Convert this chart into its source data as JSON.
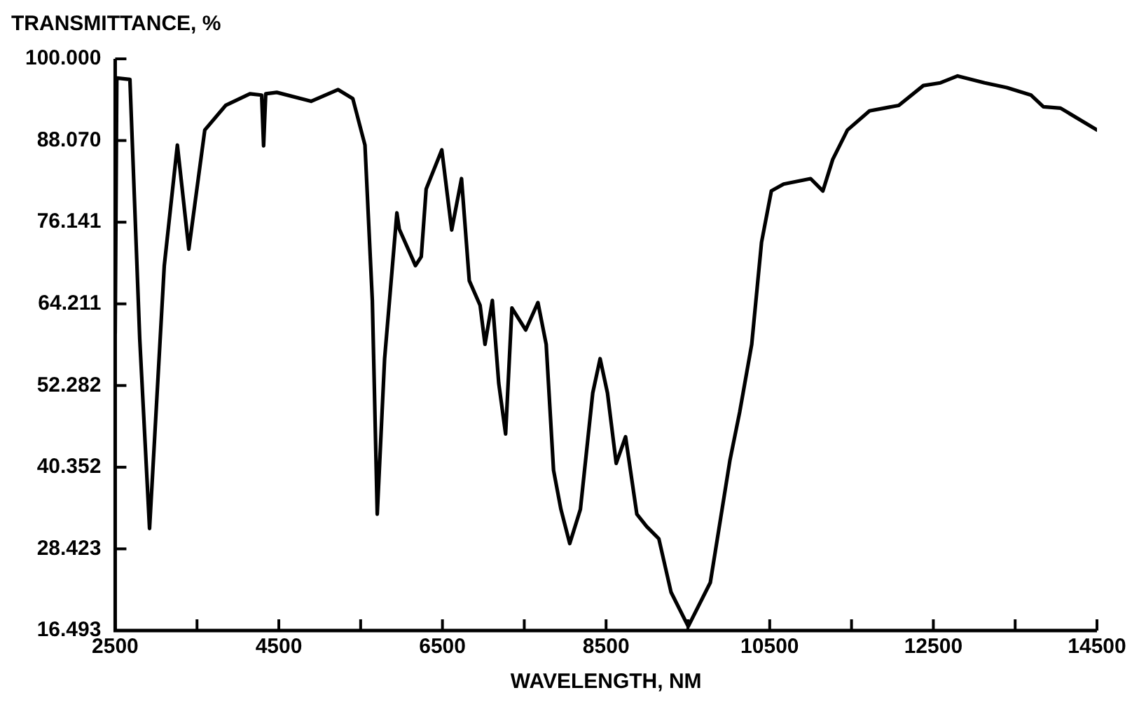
{
  "chart_data": {
    "type": "line",
    "xlabel": "WAVELENGTH, NM",
    "ylabel": "TRANSMITTANCE, %",
    "x": [
      2500,
      2520,
      2680,
      2800,
      2920,
      3100,
      3260,
      3400,
      3595,
      3850,
      4147,
      4290,
      4314,
      4340,
      4475,
      4894,
      5225,
      5404,
      5553,
      5643,
      5703,
      5793,
      5943,
      5973,
      6122,
      6170,
      6241,
      6301,
      6492,
      6613,
      6733,
      6828,
      6960,
      7020,
      7110,
      7188,
      7272,
      7349,
      7517,
      7667,
      7768,
      7858,
      7948,
      8056,
      8186,
      8337,
      8427,
      8517,
      8624,
      8738,
      8876,
      8995,
      9145,
      9294,
      9504,
      9774,
      10013,
      10133,
      10280,
      10400,
      10520,
      10670,
      11000,
      11150,
      11270,
      11450,
      11720,
      12077,
      12378,
      12587,
      12797,
      13127,
      13397,
      13695,
      13845,
      14055,
      14500
    ],
    "series": [
      {
        "color": "#000000",
        "values": [
          60,
          97.2,
          97,
          59.1,
          31.4,
          69.8,
          87.4,
          72.2,
          89.6,
          93.2,
          94.9,
          94.7,
          87.3,
          94.9,
          95.1,
          93.8,
          95.5,
          94.2,
          87.4,
          64.7,
          33.5,
          56.2,
          77.5,
          75.1,
          71.1,
          69.8,
          71.1,
          81,
          86.7,
          75,
          82.5,
          67.6,
          64,
          58.3,
          64.7,
          52.6,
          45.2,
          63.6,
          60.4,
          64.4,
          58.3,
          39.9,
          34.2,
          29.2,
          34.2,
          51.2,
          56.2,
          51.2,
          40.9,
          44.8,
          33.5,
          31.7,
          29.9,
          22.1,
          17.1,
          23.5,
          41.3,
          48.4,
          58.3,
          73.2,
          80.7,
          81.7,
          82.5,
          80.7,
          85.3,
          89.6,
          92.4,
          93.2,
          96.1,
          96.5,
          97.5,
          96.5,
          95.8,
          94.7,
          93,
          92.8,
          89.6
        ]
      }
    ],
    "xlim": [
      2500,
      14500
    ],
    "xticks": [
      2500,
      {
        "value": 3500,
        "label": null
      },
      4500,
      {
        "value": 5500,
        "label": null
      },
      6500,
      {
        "value": 7500,
        "label": null
      },
      8500,
      {
        "value": 9500,
        "label": null
      },
      10500,
      {
        "value": 11500,
        "label": null
      },
      12500,
      {
        "value": 13500,
        "label": null
      },
      14500
    ],
    "ylim": [
      16.493,
      100
    ],
    "yticks": [
      16.493,
      28.423,
      40.352,
      52.282,
      64.211,
      76.141,
      {
        "value": 88.07,
        "label": "88.070"
      },
      {
        "value": 100,
        "label": "100.000"
      }
    ],
    "grid": false,
    "legend": false,
    "marker": "none",
    "line_style": "solid"
  }
}
